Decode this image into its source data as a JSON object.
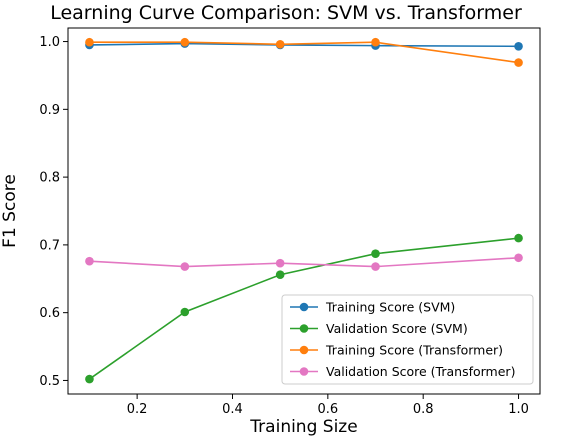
{
  "chart_data": {
    "type": "line",
    "title": "Learning Curve Comparison: SVM vs. Transformer",
    "xlabel": "Training Size",
    "ylabel": "F1 Score",
    "xlim": [
      0.055,
      1.045
    ],
    "ylim": [
      0.48,
      1.02
    ],
    "xticks": [
      0.2,
      0.4,
      0.6,
      0.8,
      1.0
    ],
    "xtick_labels": [
      "0.2",
      "0.4",
      "0.6",
      "0.8",
      "1.0"
    ],
    "yticks": [
      0.5,
      0.6,
      0.7,
      0.8,
      0.9,
      1.0
    ],
    "ytick_labels": [
      "0.5",
      "0.6",
      "0.7",
      "0.8",
      "0.9",
      "1.0"
    ],
    "grid": false,
    "legend_position": "bottom-right",
    "x": [
      0.1,
      0.3,
      0.5,
      0.7,
      1.0
    ],
    "series": [
      {
        "name": "Training Score (SVM)",
        "color": "#1f77b4",
        "values": [
          0.995,
          0.997,
          0.995,
          0.994,
          0.993
        ]
      },
      {
        "name": "Validation Score (SVM)",
        "color": "#2ca02c",
        "values": [
          0.502,
          0.601,
          0.656,
          0.687,
          0.71
        ]
      },
      {
        "name": "Training Score (Transformer)",
        "color": "#ff7f0e",
        "values": [
          0.999,
          0.999,
          0.996,
          0.999,
          0.969
        ]
      },
      {
        "name": "Validation Score (Transformer)",
        "color": "#e377c2",
        "values": [
          0.676,
          0.668,
          0.673,
          0.668,
          0.681
        ]
      }
    ]
  }
}
